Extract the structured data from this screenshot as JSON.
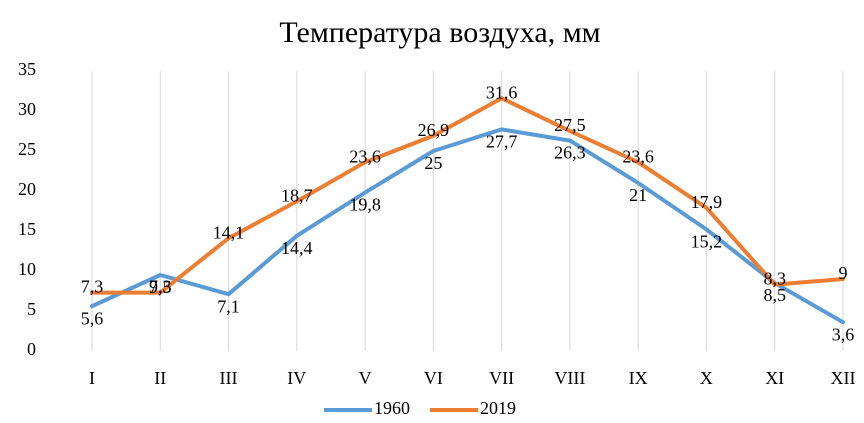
{
  "chart_data": {
    "type": "line",
    "title": "Температура воздуха, мм",
    "categories": [
      "I",
      "II",
      "III",
      "IV",
      "V",
      "VI",
      "VII",
      "VIII",
      "IX",
      "X",
      "XI",
      "XII"
    ],
    "series": [
      {
        "name": "1960",
        "color": "#5b9bd5",
        "values": [
          5.6,
          9.5,
          7.1,
          14.4,
          19.8,
          25,
          27.7,
          26.3,
          21,
          15.2,
          8.5,
          3.6
        ],
        "value_labels": [
          "5,6",
          "9,5",
          "7,1",
          "14,4",
          "19,8",
          "25",
          "27,7",
          "26,3",
          "21",
          "15,2",
          "8,5",
          "3,6"
        ]
      },
      {
        "name": "2019",
        "color": "#ed7d31",
        "values": [
          7.3,
          7.3,
          14.1,
          18.7,
          23.6,
          26.9,
          31.6,
          27.5,
          23.6,
          17.9,
          8.3,
          9
        ],
        "value_labels": [
          "7,3",
          "7,3",
          "14,1",
          "18,7",
          "23,6",
          "26,9",
          "31,6",
          "27,5",
          "23,6",
          "17,9",
          "8,3",
          "9"
        ]
      }
    ],
    "ylim": [
      0,
      35
    ],
    "yticks": [
      0,
      5,
      10,
      15,
      20,
      25,
      30,
      35
    ],
    "grid": "x",
    "legend": "bottom"
  }
}
